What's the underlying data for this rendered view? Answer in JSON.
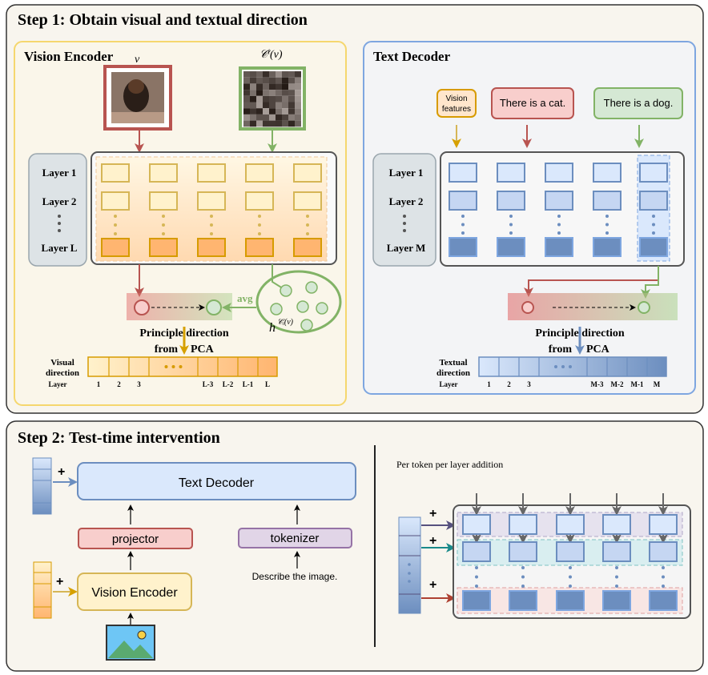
{
  "step1": {
    "title": "Step 1: Obtain visual and textual direction",
    "vision": {
      "title": "Vision Encoder",
      "image_label": "v",
      "masked_label": "𝒞ⁱ(v)",
      "layers": [
        "Layer 1",
        "Layer 2",
        "Layer L"
      ],
      "avg_label": "avg",
      "cluster_label": "h",
      "cluster_sup": "𝒞ᵢ(v)",
      "pca_line1": "Principle direction",
      "pca_line2_a": "from",
      "pca_line2_b": "PCA",
      "direction_label_1": "Visual",
      "direction_label_2": "direction",
      "layer_axis": "Layer",
      "bar_ticks": [
        "1",
        "2",
        "3",
        "",
        "L-3",
        "L-2",
        "L-1",
        "L"
      ]
    },
    "text": {
      "title": "Text Decoder",
      "bubbles": [
        "Vision",
        "features",
        "There is a cat.",
        "There is a dog."
      ],
      "layers": [
        "Layer 1",
        "Layer 2",
        "Layer M"
      ],
      "pca_line1": "Principle direction",
      "pca_line2_a": "from",
      "pca_line2_b": "PCA",
      "direction_label_1": "Textual",
      "direction_label_2": "direction",
      "layer_axis": "Layer",
      "bar_ticks": [
        "1",
        "2",
        "3",
        "",
        "M-3",
        "M-2",
        "M-1",
        "M"
      ]
    }
  },
  "step2": {
    "title": "Step 2: Test-time intervention",
    "text_decoder": "Text Decoder",
    "projector": "projector",
    "tokenizer": "tokenizer",
    "vision_encoder": "Vision Encoder",
    "prompt": "Describe the image.",
    "plus": "+",
    "per_token_title": "Per token per layer addition"
  },
  "colors": {
    "orange": "#d79b00",
    "red": "#b85450",
    "green": "#82b366",
    "blue": "#6c8ebf",
    "purple": "#9673a6",
    "teal": "#1a8a8a"
  }
}
